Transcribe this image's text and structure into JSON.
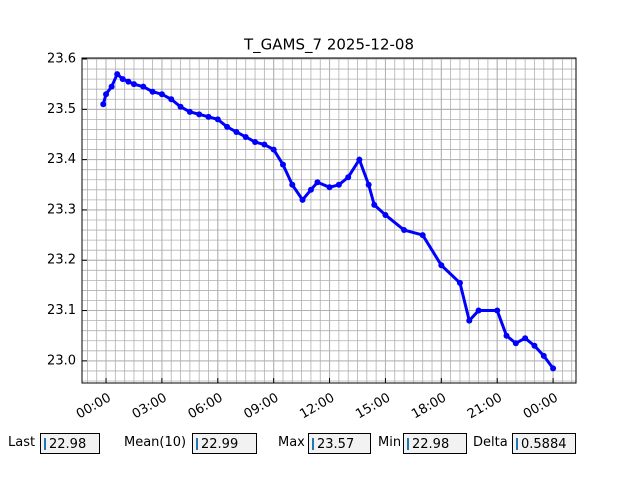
{
  "chart_data": {
    "type": "line",
    "title": "T_GAMS_7 2025-12-08",
    "x": [
      -0.15,
      0.0,
      0.3,
      0.6,
      0.9,
      1.2,
      1.5,
      2.0,
      2.5,
      3.0,
      3.5,
      4.0,
      4.5,
      5.0,
      5.5,
      6.0,
      6.5,
      7.0,
      7.5,
      8.0,
      8.5,
      9.0,
      9.5,
      10.0,
      10.55,
      11.0,
      11.35,
      12.0,
      12.5,
      13.0,
      13.6,
      14.1,
      14.4,
      15.0,
      16.0,
      17.0,
      18.0,
      19.0,
      19.5,
      20.0,
      21.0,
      21.5,
      22.0,
      22.5,
      23.0,
      23.5,
      24.0
    ],
    "series": [
      {
        "name": "T_GAMS_7",
        "color": "#0000ff",
        "values": [
          23.51,
          23.53,
          23.545,
          23.57,
          23.56,
          23.555,
          23.55,
          23.545,
          23.535,
          23.53,
          23.52,
          23.505,
          23.495,
          23.49,
          23.485,
          23.48,
          23.465,
          23.455,
          23.445,
          23.435,
          23.43,
          23.42,
          23.39,
          23.35,
          23.32,
          23.34,
          23.355,
          23.345,
          23.35,
          23.365,
          23.4,
          23.35,
          23.31,
          23.29,
          23.26,
          23.25,
          23.19,
          23.155,
          23.08,
          23.1,
          23.1,
          23.05,
          23.035,
          23.045,
          23.03,
          23.01,
          22.985
        ]
      }
    ],
    "xlim": [
      -1.29,
      25.23
    ],
    "ylim": [
      22.956,
      23.602
    ],
    "xticks": [
      {
        "value": 0,
        "label": "00:00"
      },
      {
        "value": 3,
        "label": "03:00"
      },
      {
        "value": 6,
        "label": "06:00"
      },
      {
        "value": 9,
        "label": "09:00"
      },
      {
        "value": 12,
        "label": "12:00"
      },
      {
        "value": 15,
        "label": "15:00"
      },
      {
        "value": 18,
        "label": "18:00"
      },
      {
        "value": 21,
        "label": "21:00"
      },
      {
        "value": 24,
        "label": "00:00"
      }
    ],
    "yticks": [
      {
        "value": 23.0,
        "label": "23.0"
      },
      23.1,
      23.2,
      23.3,
      23.4,
      23.5,
      23.6
    ],
    "grid": true
  },
  "stats": [
    {
      "label": "Last",
      "value": "22.98"
    },
    {
      "label": "Mean(10)",
      "value": "22.99"
    },
    {
      "label": "Max",
      "value": "23.57"
    },
    {
      "label": "Min",
      "value": "22.98"
    },
    {
      "label": "Delta",
      "value": "0.5884"
    }
  ]
}
